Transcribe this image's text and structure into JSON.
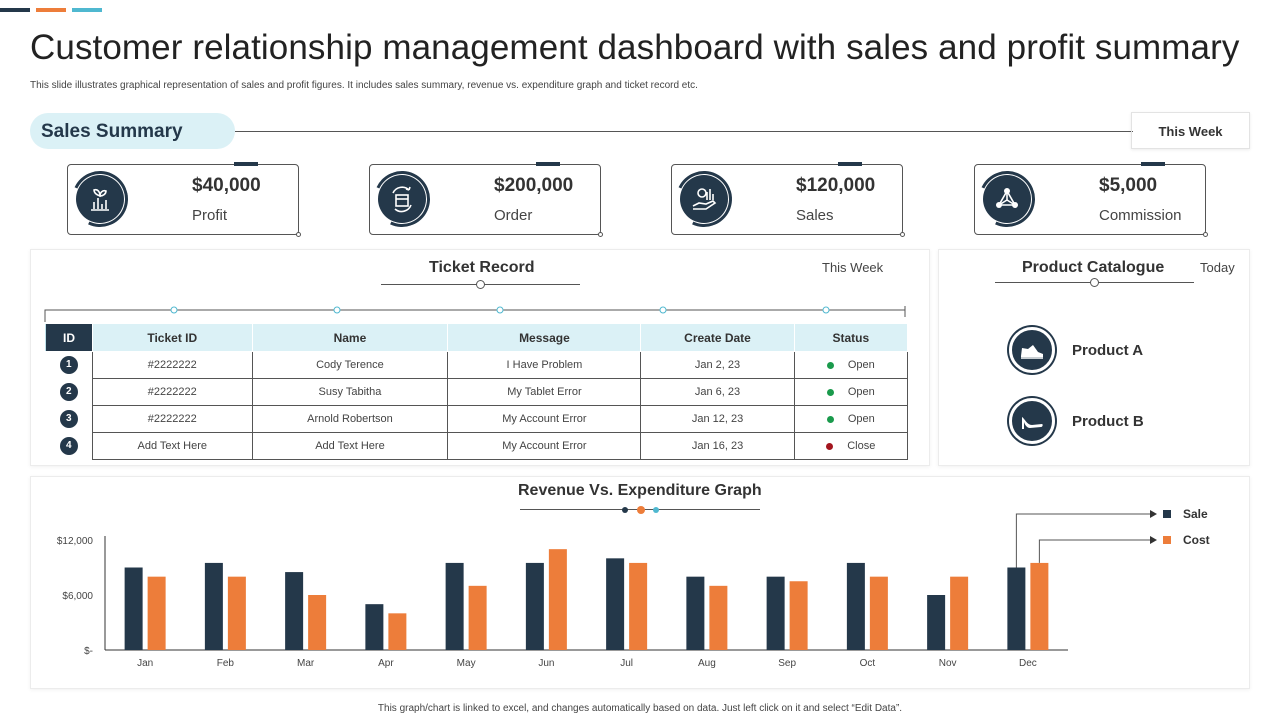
{
  "accent_colors": [
    "#24384a",
    "#ed7d3a",
    "#4fb8d0"
  ],
  "header": {
    "title": "Customer relationship management dashboard with sales and profit summary",
    "subtitle": "This slide illustrates graphical representation of sales and profit figures. It includes sales summary, revenue vs. expenditure graph and ticket record etc."
  },
  "sales_summary": {
    "label": "Sales Summary",
    "period": "This Week",
    "kpis": [
      {
        "value": "$40,000",
        "label": "Profit",
        "icon": "profit-chart-icon"
      },
      {
        "value": "$200,000",
        "label": "Order",
        "icon": "order-box-icon"
      },
      {
        "value": "$120,000",
        "label": "Sales",
        "icon": "sales-hand-coin-icon"
      },
      {
        "value": "$5,000",
        "label": "Commission",
        "icon": "commission-network-icon"
      }
    ]
  },
  "ticket_record": {
    "title": "Ticket Record",
    "period": "This Week",
    "columns": [
      "ID",
      "Ticket ID",
      "Name",
      "Message",
      "Create Date",
      "Status"
    ],
    "rows": [
      {
        "id": "1",
        "ticket_id": "#2222222",
        "name": "Cody Terence",
        "message": "I Have Problem",
        "date": "Jan 2, 23",
        "status": "Open",
        "status_color": "#1a9a4c"
      },
      {
        "id": "2",
        "ticket_id": "#2222222",
        "name": "Susy Tabitha",
        "message": "My Tablet Error",
        "date": "Jan 6, 23",
        "status": "Open",
        "status_color": "#1a9a4c"
      },
      {
        "id": "3",
        "ticket_id": "#2222222",
        "name": "Arnold Robertson",
        "message": "My Account Error",
        "date": "Jan 12, 23",
        "status": "Open",
        "status_color": "#1a9a4c"
      },
      {
        "id": "4",
        "ticket_id": "Add Text Here",
        "name": "Add Text Here",
        "message": "My Account Error",
        "date": "Jan 16, 23",
        "status": "Close",
        "status_color": "#a3151e"
      }
    ]
  },
  "product_catalogue": {
    "title": "Product Catalogue",
    "period": "Today",
    "products": [
      {
        "label": "Product A",
        "icon": "sneaker-icon"
      },
      {
        "label": "Product B",
        "icon": "high-heel-icon"
      }
    ]
  },
  "chart_data": {
    "type": "bar",
    "title": "Revenue Vs. Expenditure Graph",
    "categories": [
      "Jan",
      "Feb",
      "Mar",
      "Apr",
      "May",
      "Jun",
      "Jul",
      "Aug",
      "Sep",
      "Oct",
      "Nov",
      "Dec"
    ],
    "series": [
      {
        "name": "Sale",
        "color": "#24384a",
        "values": [
          9000,
          9500,
          8500,
          5000,
          9500,
          9500,
          10000,
          8000,
          8000,
          9500,
          6000,
          9000
        ]
      },
      {
        "name": "Cost",
        "color": "#ed7d3a",
        "values": [
          8000,
          8000,
          6000,
          4000,
          7000,
          11000,
          9500,
          7000,
          7500,
          8000,
          8000,
          9500
        ]
      }
    ],
    "ylim": [
      0,
      12000
    ],
    "yticks": [
      0,
      6000,
      12000
    ],
    "ytick_labels": [
      "$-",
      "$6,000",
      "$12,000"
    ],
    "legend_position": "right",
    "grid": false
  },
  "footer": {
    "note": "This graph/chart is linked to excel, and changes automatically based on data. Just left click on it and select “Edit Data”."
  }
}
